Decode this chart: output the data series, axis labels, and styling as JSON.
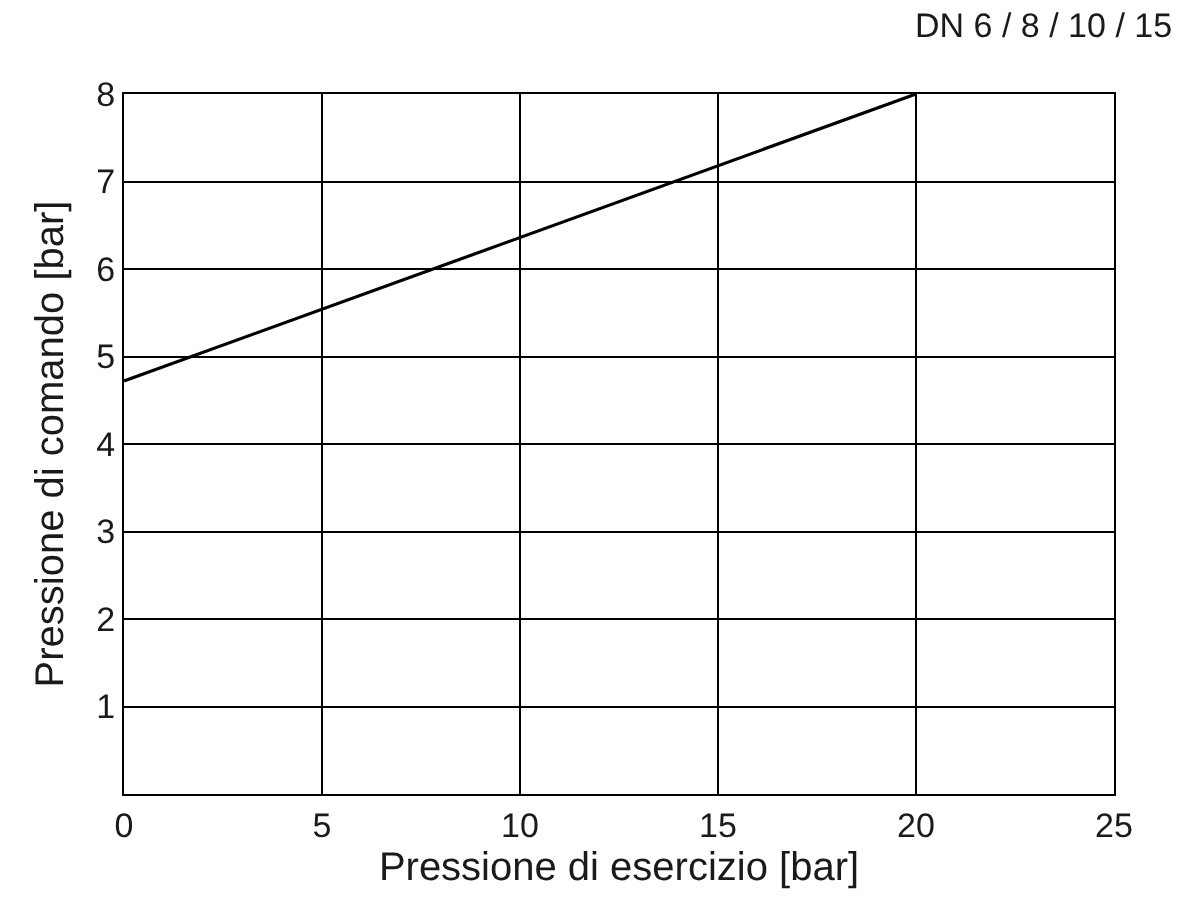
{
  "chart_data": {
    "type": "line",
    "title": "DN 6 / 8 / 10 / 15",
    "xlabel": "Pressione di esercizio [bar]",
    "ylabel": "Pressione di comando [bar]",
    "x": [
      0,
      20
    ],
    "series": [
      {
        "color": "#000000",
        "values": [
          4.72,
          8
        ]
      }
    ],
    "xlim": [
      0,
      25
    ],
    "xticks": [
      0,
      5,
      10,
      15,
      20,
      25
    ],
    "ylim": [
      0,
      8
    ],
    "yticks": [
      1,
      2,
      3,
      4,
      5,
      6,
      7,
      8
    ],
    "grid": true,
    "marker": "none",
    "line_style": "solid"
  }
}
